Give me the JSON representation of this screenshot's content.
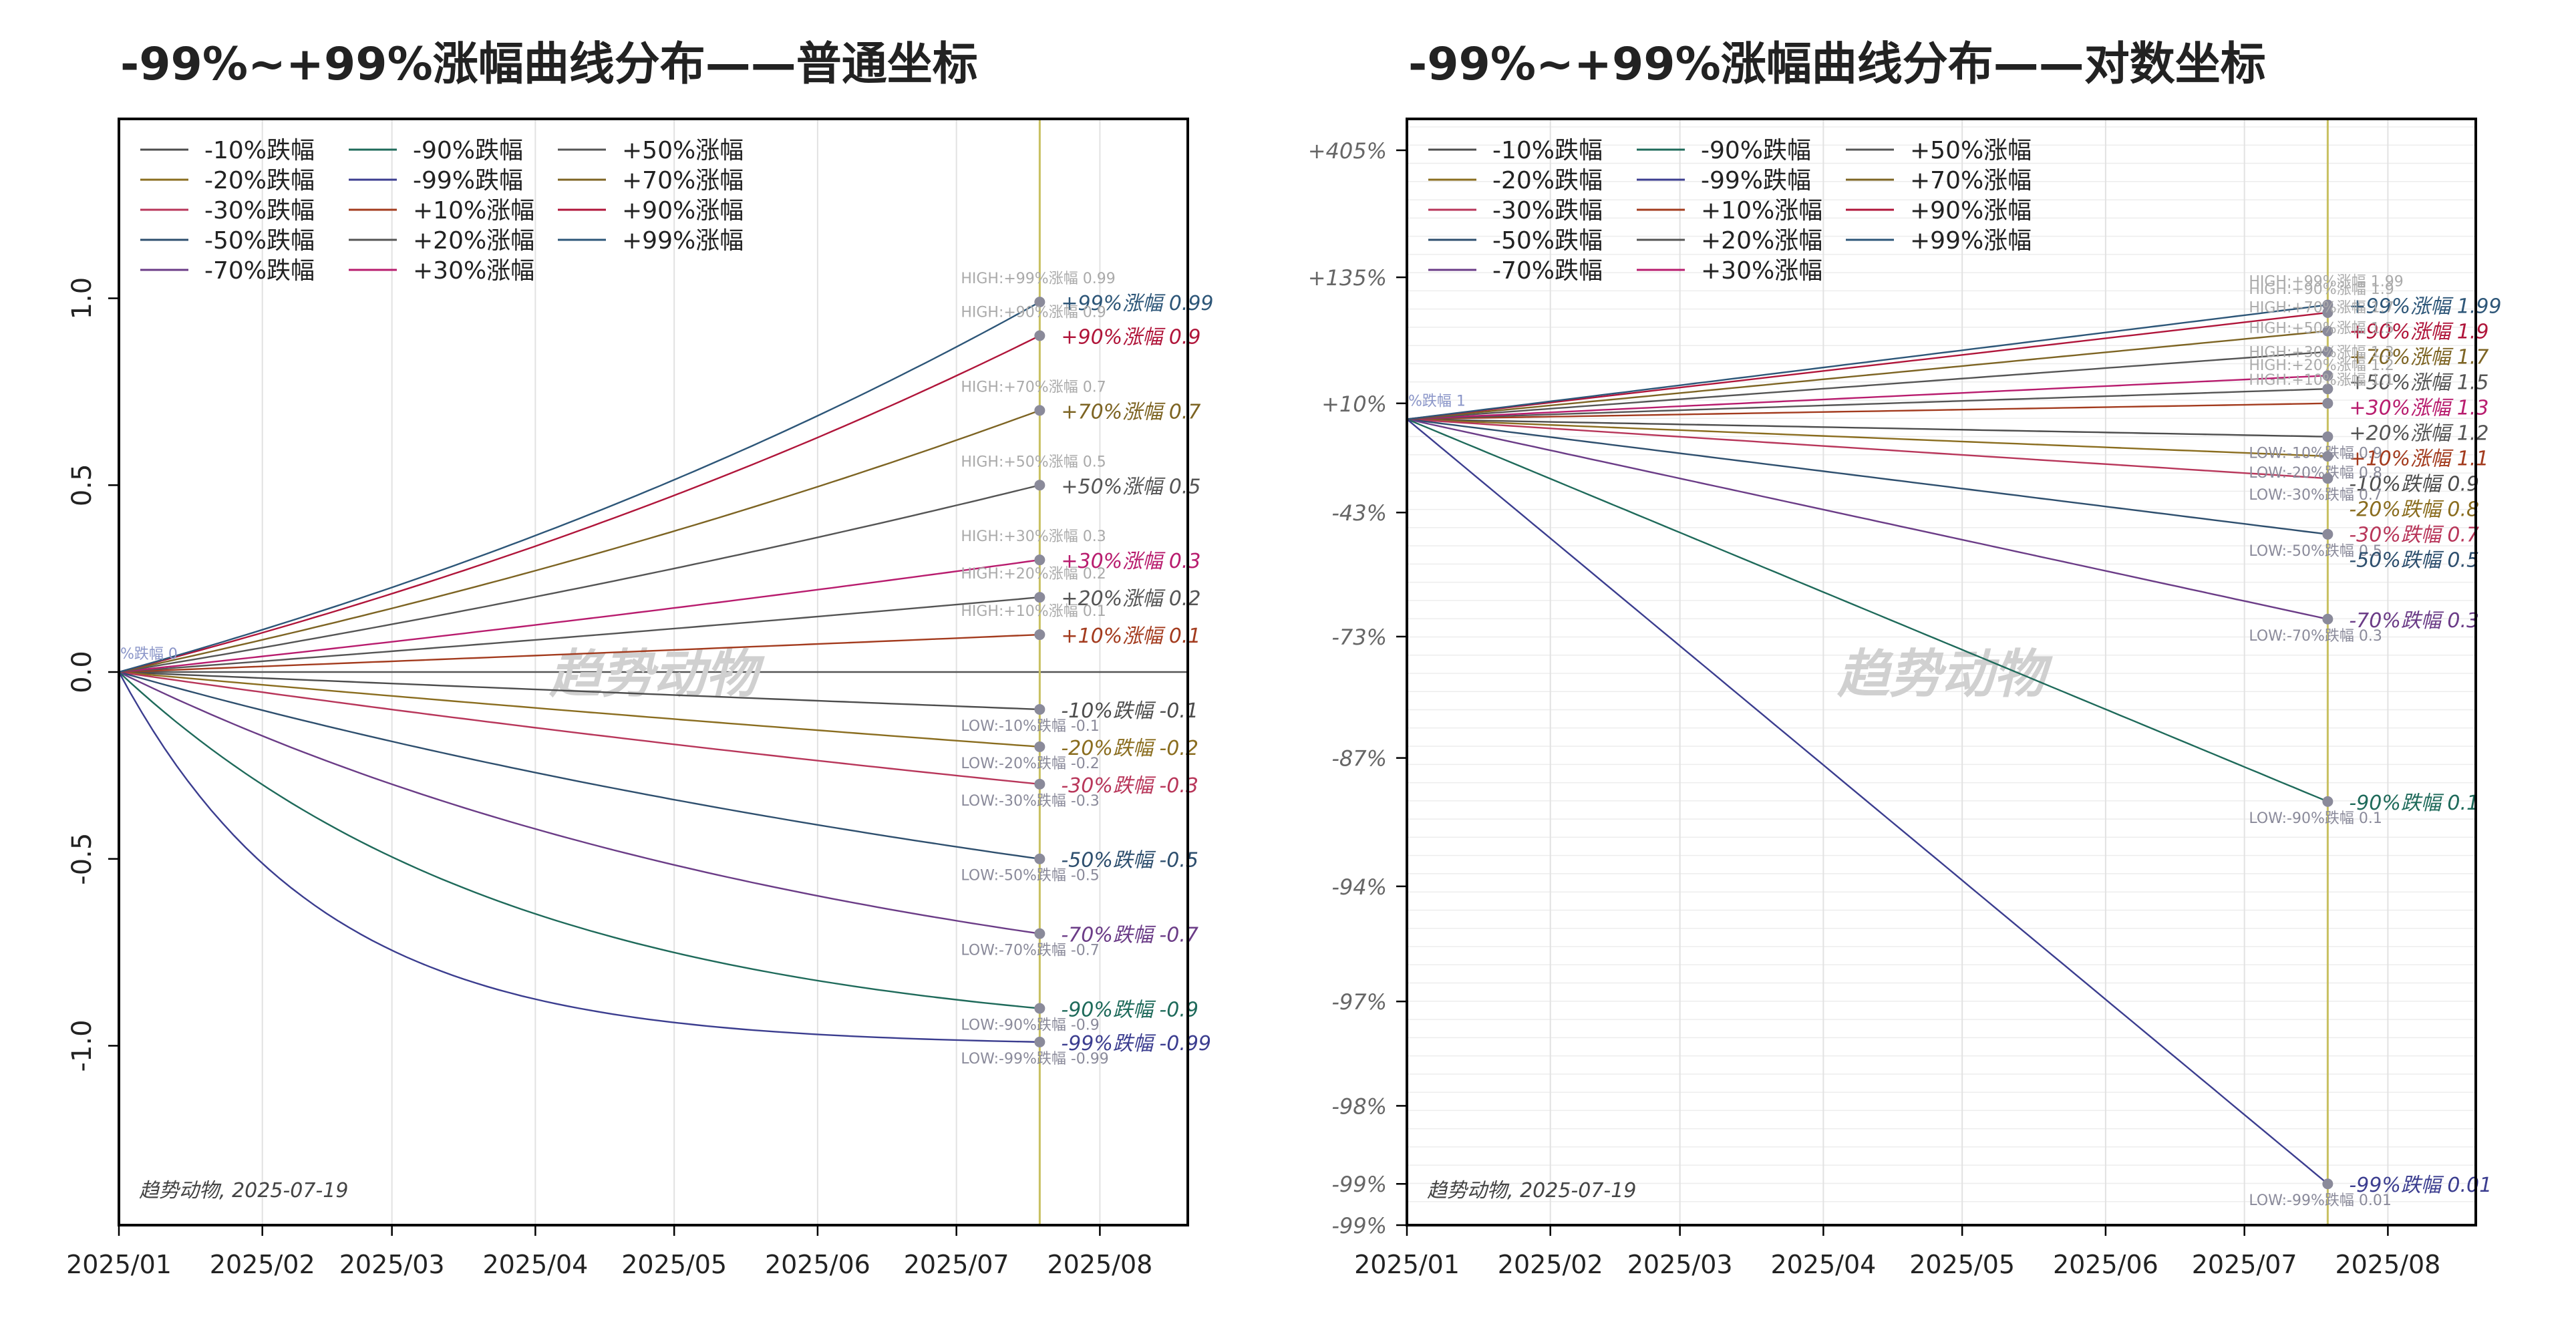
{
  "colors": {
    "-10%跌幅": "#4d4d4d",
    "-20%跌幅": "#8a6d1f",
    "-30%跌幅": "#b8365a",
    "-50%跌幅": "#2e4f6e",
    "-70%跌幅": "#6b3c87",
    "-90%跌幅": "#1e6a5a",
    "-99%跌幅": "#3b3d8f",
    "+10%涨幅": "#a33b1e",
    "+20%涨幅": "#555555",
    "+30%涨幅": "#b81c6e",
    "+50%涨幅": "#555555",
    "+70%涨幅": "#7d6423",
    "+90%涨幅": "#b0153a",
    "+99%涨幅": "#2d5678",
    "vline": "#c8c060",
    "grid": "#e2e2e2"
  },
  "legend_order": [
    "-10%跌幅",
    "-20%跌幅",
    "-30%跌幅",
    "-50%跌幅",
    "-70%跌幅",
    "-90%跌幅",
    "-99%跌幅",
    "+10%涨幅",
    "+20%涨幅",
    "+30%涨幅",
    "+50%涨幅",
    "+70%涨幅",
    "+90%涨幅",
    "+99%涨幅"
  ],
  "chart_data": [
    {
      "type": "line",
      "title": "-99%~+99%涨幅曲线分布——普通坐标",
      "scale": "linear",
      "x_ticks": [
        "2025/01",
        "2025/02",
        "2025/03",
        "2025/04",
        "2025/05",
        "2025/06",
        "2025/07",
        "2025/08"
      ],
      "x_range": [
        "2025-01-01",
        "2025-08-20"
      ],
      "vline_date": "2025-07-19",
      "ylim": [
        -1.48,
        1.48
      ],
      "y_ticks": [
        1.0,
        0.5,
        0.0,
        -0.5,
        -1.0
      ],
      "y_tick_labels": [
        "1.0",
        "0.5",
        "0.0",
        "-0.5",
        "-1.0"
      ],
      "grid": true,
      "legend_position": "top-left",
      "watermark": "趋势动物",
      "footnote": "趋势动物, 2025-07-19",
      "start_label": "%跌幅 0",
      "series": [
        {
          "name": "-10%跌幅",
          "start": 0,
          "end": -0.1,
          "curve": "log",
          "end_label": "-10%跌幅 -0.1",
          "extreme_label": "LOW:-10%跌幅 -0.1"
        },
        {
          "name": "-20%跌幅",
          "start": 0,
          "end": -0.2,
          "curve": "log",
          "end_label": "-20%跌幅 -0.2",
          "extreme_label": "LOW:-20%跌幅 -0.2"
        },
        {
          "name": "-30%跌幅",
          "start": 0,
          "end": -0.3,
          "curve": "log",
          "end_label": "-30%跌幅 -0.3",
          "extreme_label": "LOW:-30%跌幅 -0.3"
        },
        {
          "name": "-50%跌幅",
          "start": 0,
          "end": -0.5,
          "curve": "log",
          "end_label": "-50%跌幅 -0.5",
          "extreme_label": "LOW:-50%跌幅 -0.5"
        },
        {
          "name": "-70%跌幅",
          "start": 0,
          "end": -0.7,
          "curve": "log",
          "end_label": "-70%跌幅 -0.7",
          "extreme_label": "LOW:-70%跌幅 -0.7"
        },
        {
          "name": "-90%跌幅",
          "start": 0,
          "end": -0.9,
          "curve": "log",
          "end_label": "-90%跌幅 -0.9",
          "extreme_label": "LOW:-90%跌幅 -0.9"
        },
        {
          "name": "-99%跌幅",
          "start": 0,
          "end": -0.99,
          "curve": "log",
          "end_label": "-99%跌幅 -0.99",
          "extreme_label": "LOW:-99%跌幅 -0.99"
        },
        {
          "name": "+10%涨幅",
          "start": 0,
          "end": 0.1,
          "curve": "log",
          "end_label": "+10%涨幅 0.1",
          "extreme_label": "HIGH:+10%涨幅 0.1"
        },
        {
          "name": "+20%涨幅",
          "start": 0,
          "end": 0.2,
          "curve": "log",
          "end_label": "+20%涨幅 0.2",
          "extreme_label": "HIGH:+20%涨幅 0.2"
        },
        {
          "name": "+30%涨幅",
          "start": 0,
          "end": 0.3,
          "curve": "log",
          "end_label": "+30%涨幅 0.3",
          "extreme_label": "HIGH:+30%涨幅 0.3"
        },
        {
          "name": "+50%涨幅",
          "start": 0,
          "end": 0.5,
          "curve": "log",
          "end_label": "+50%涨幅 0.5",
          "extreme_label": "HIGH:+50%涨幅 0.5"
        },
        {
          "name": "+70%涨幅",
          "start": 0,
          "end": 0.7,
          "curve": "log",
          "end_label": "+70%涨幅 0.7",
          "extreme_label": "HIGH:+70%涨幅 0.7"
        },
        {
          "name": "+90%涨幅",
          "start": 0,
          "end": 0.9,
          "curve": "log",
          "end_label": "+90%涨幅 0.9",
          "extreme_label": "HIGH:+90%涨幅 0.9"
        },
        {
          "name": "+99%涨幅",
          "start": 0,
          "end": 0.99,
          "curve": "log",
          "end_label": "+99%涨幅 0.99",
          "extreme_label": "HIGH:+99%涨幅 0.99"
        }
      ]
    },
    {
      "type": "line",
      "title": "-99%~+99%涨幅曲线分布——对数坐标",
      "scale": "log",
      "x_ticks": [
        "2025/01",
        "2025/02",
        "2025/03",
        "2025/04",
        "2025/05",
        "2025/06",
        "2025/07",
        "2025/08"
      ],
      "x_range": [
        "2025-01-01",
        "2025-08-20"
      ],
      "vline_date": "2025-07-19",
      "ylim": [
        0.0078,
        6.1
      ],
      "y_ticks": [
        5.05,
        2.35,
        1.1,
        0.57,
        0.27,
        0.13,
        0.06,
        0.03,
        0.016,
        0.01,
        0.0078
      ],
      "y_tick_labels": [
        "+405%",
        "+135%",
        "+10%",
        "-43%",
        "-73%",
        "-87%",
        "-94%",
        "-97%",
        "-98%",
        "-99%",
        "-99%"
      ],
      "grid": true,
      "legend_position": "top-left",
      "watermark": "趋势动物",
      "footnote": "趋势动物, 2025-07-19",
      "start_label": "%跌幅 1",
      "series": [
        {
          "name": "-10%跌幅",
          "start": 1,
          "end": 0.9,
          "end_label": "-10%跌幅 0.9",
          "extreme_label": "LOW:-10%跌幅 0.9"
        },
        {
          "name": "-20%跌幅",
          "start": 1,
          "end": 0.8,
          "end_label": "-20%跌幅 0.8",
          "extreme_label": "LOW:-20%跌幅 0.8"
        },
        {
          "name": "-30%跌幅",
          "start": 1,
          "end": 0.7,
          "end_label": "-30%跌幅 0.7",
          "extreme_label": "LOW:-30%跌幅 0.7"
        },
        {
          "name": "-50%跌幅",
          "start": 1,
          "end": 0.5,
          "end_label": "-50%跌幅 0.5",
          "extreme_label": "LOW:-50%跌幅 0.5"
        },
        {
          "name": "-70%跌幅",
          "start": 1,
          "end": 0.3,
          "end_label": "-70%跌幅 0.3",
          "extreme_label": "LOW:-70%跌幅 0.3"
        },
        {
          "name": "-90%跌幅",
          "start": 1,
          "end": 0.1,
          "end_label": "-90%跌幅 0.1",
          "extreme_label": "LOW:-90%跌幅 0.1"
        },
        {
          "name": "-99%跌幅",
          "start": 1,
          "end": 0.01,
          "end_label": "-99%跌幅 0.01",
          "extreme_label": "LOW:-99%跌幅 0.01"
        },
        {
          "name": "+10%涨幅",
          "start": 1,
          "end": 1.1,
          "end_label": "+10%涨幅 1.1",
          "extreme_label": "HIGH:+10%涨幅 1.1"
        },
        {
          "name": "+20%涨幅",
          "start": 1,
          "end": 1.2,
          "end_label": "+20%涨幅 1.2",
          "extreme_label": "HIGH:+20%涨幅 1.2"
        },
        {
          "name": "+30%涨幅",
          "start": 1,
          "end": 1.3,
          "end_label": "+30%涨幅 1.3",
          "extreme_label": "HIGH:+30%涨幅 1.3"
        },
        {
          "name": "+50%涨幅",
          "start": 1,
          "end": 1.5,
          "end_label": "+50%涨幅 1.5",
          "extreme_label": "HIGH:+50%涨幅 1.5"
        },
        {
          "name": "+70%涨幅",
          "start": 1,
          "end": 1.7,
          "end_label": "+70%涨幅 1.7",
          "extreme_label": "HIGH:+70%涨幅 1.7"
        },
        {
          "name": "+90%涨幅",
          "start": 1,
          "end": 1.9,
          "end_label": "+90%涨幅 1.9",
          "extreme_label": "HIGH:+90%涨幅 1.9"
        },
        {
          "name": "+99%涨幅",
          "start": 1,
          "end": 1.99,
          "end_label": "+99%涨幅 1.99",
          "extreme_label": "HIGH:+99%涨幅 1.99"
        }
      ]
    }
  ]
}
